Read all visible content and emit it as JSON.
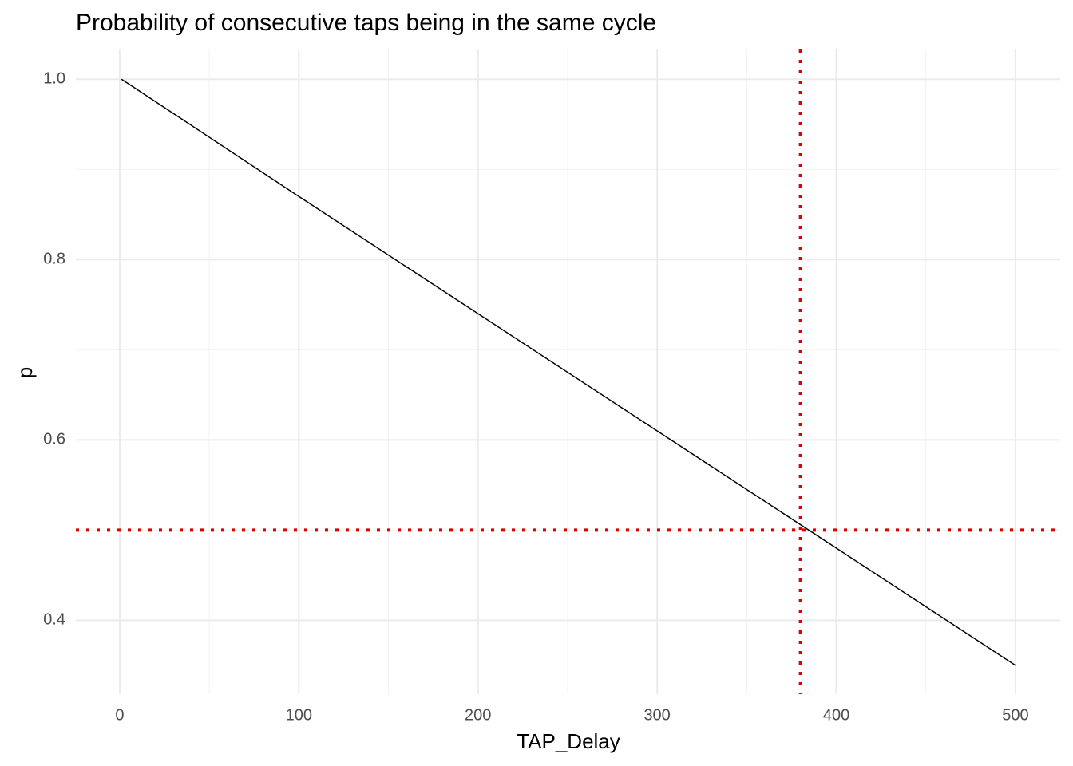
{
  "chart_data": {
    "type": "line",
    "title": "Probability of consecutive taps being in the same cycle",
    "x_label": "TAP_Delay",
    "y_label": "p",
    "x": [
      1,
      100,
      200,
      300,
      400,
      500
    ],
    "series": [
      {
        "color": "#000000",
        "values": [
          1.0,
          0.87,
          0.74,
          0.61,
          0.48,
          0.35
        ]
      }
    ],
    "xlim": [
      -24.5,
      525
    ],
    "ylim": [
      0.318,
      1.033
    ],
    "xticks": [
      0,
      100,
      200,
      300,
      400,
      500
    ],
    "yticks": [
      {
        "value": 0.4,
        "label": "0.4"
      },
      {
        "value": 0.6,
        "label": "0.6"
      },
      {
        "value": 0.8,
        "label": "0.8"
      },
      {
        "value": 1.0,
        "label": "1.0"
      }
    ],
    "xminor": [
      50,
      150,
      250,
      350,
      450
    ],
    "yminor": [
      0.5,
      0.7,
      0.9
    ],
    "grid": true,
    "hlines": [
      0.5
    ],
    "vlines": [
      380
    ],
    "ref_color": "#e00000"
  }
}
